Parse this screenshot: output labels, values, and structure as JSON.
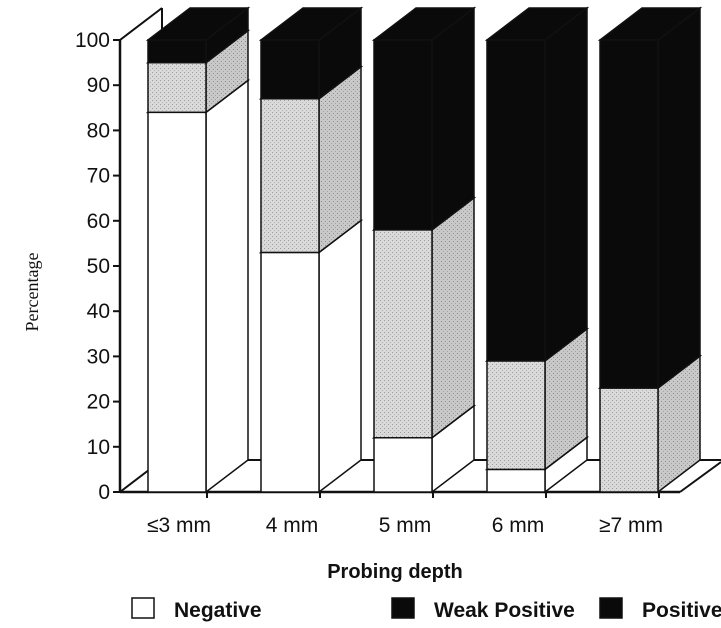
{
  "chart_data": {
    "type": "bar",
    "stacked": true,
    "three_d": true,
    "title": "",
    "xlabel": "Probing depth",
    "ylabel": "Percentage",
    "ylim": [
      0,
      100
    ],
    "yticks": [
      0,
      10,
      20,
      30,
      40,
      50,
      60,
      70,
      80,
      90,
      100
    ],
    "categories": [
      "≤3 mm",
      "4 mm",
      "5 mm",
      "6 mm",
      "≥7 mm"
    ],
    "series": [
      {
        "name": "Negative",
        "values": [
          84,
          53,
          12,
          5,
          0
        ],
        "color": "#ffffff"
      },
      {
        "name": "Weak Positive",
        "values": [
          11,
          34,
          46,
          24,
          23
        ],
        "color": "#d6d6d6"
      },
      {
        "name": "Positive",
        "values": [
          5,
          13,
          42,
          71,
          77
        ],
        "color": "#0a0a0a"
      }
    ],
    "legend": {
      "position": "bottom"
    }
  }
}
